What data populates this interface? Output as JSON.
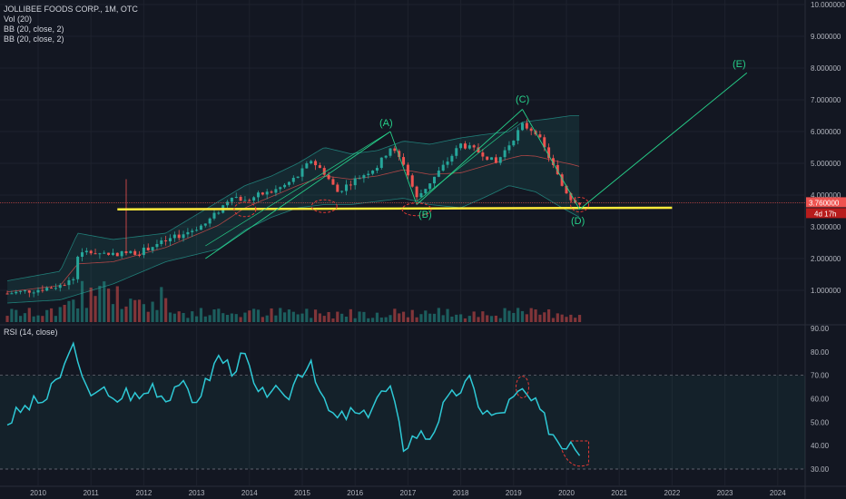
{
  "header": {
    "symbol_line": "JOLLIBEE FOODS CORP., 1M, OTC",
    "indicators": [
      "Vol (20)",
      "BB (20, close, 2)",
      "BB (20, close, 2)"
    ]
  },
  "rsi_legend": "RSI (14, close)",
  "colors": {
    "background": "#131722",
    "up": "#26a69a",
    "down": "#ef5350",
    "bb_fill": "#26a69a",
    "support_line": "#ffeb3b",
    "wave_line": "#26d08a",
    "rsi_line": "#2ec9d6",
    "markup_red": "#e53935"
  },
  "price_axis_labels": [
    "10.000000",
    "9.000000",
    "8.000000",
    "7.000000",
    "6.000000",
    "5.000000",
    "4.000000",
    "3.000000",
    "2.000000",
    "1.000000"
  ],
  "current_price_label": "3.760000",
  "countdown_label": "4d 17h",
  "rsi_axis_labels": [
    "90.00",
    "80.00",
    "70.00",
    "60.00",
    "50.00",
    "40.00",
    "30.00"
  ],
  "time_axis_labels": [
    "2010",
    "2011",
    "2012",
    "2013",
    "2014",
    "2015",
    "2016",
    "2017",
    "2018",
    "2019",
    "2020",
    "2021",
    "2022",
    "2023",
    "2024"
  ],
  "annotations": {
    "A": "(A)",
    "B": "(B)",
    "C": "(C)",
    "D": "(D)",
    "E": "(E)"
  },
  "chart_data": [
    {
      "type": "candlestick",
      "title": "JOLLIBEE FOODS CORP., 1M, OTC",
      "x_range": [
        "2009-06",
        "2024-12"
      ],
      "ylim": [
        0,
        10
      ],
      "support_level": 3.6,
      "current_price": 3.76,
      "close_path": [
        [
          "2009-06",
          0.9
        ],
        [
          "2009-12",
          1.0
        ],
        [
          "2010-06",
          1.15
        ],
        [
          "2010-09",
          1.35
        ],
        [
          "2010-10",
          2.1
        ],
        [
          "2010-12",
          2.2
        ],
        [
          "2011-06",
          2.15
        ],
        [
          "2011-12",
          2.2
        ],
        [
          "2012-03",
          2.4
        ],
        [
          "2012-06",
          2.55
        ],
        [
          "2012-12",
          2.9
        ],
        [
          "2013-03",
          3.1
        ],
        [
          "2013-06",
          3.5
        ],
        [
          "2013-09",
          4.0
        ],
        [
          "2013-12",
          3.8
        ],
        [
          "2014-03",
          4.0
        ],
        [
          "2014-06",
          4.1
        ],
        [
          "2014-09",
          4.3
        ],
        [
          "2014-12",
          4.6
        ],
        [
          "2015-03",
          5.1
        ],
        [
          "2015-06",
          4.7
        ],
        [
          "2015-09",
          4.1
        ],
        [
          "2015-12",
          4.4
        ],
        [
          "2016-06",
          4.9
        ],
        [
          "2016-09",
          5.5
        ],
        [
          "2016-12",
          5.0
        ],
        [
          "2017-03",
          3.9
        ],
        [
          "2017-06",
          4.4
        ],
        [
          "2017-09",
          4.9
        ],
        [
          "2018-01",
          5.6
        ],
        [
          "2018-06",
          5.3
        ],
        [
          "2018-09",
          5.0
        ],
        [
          "2018-12",
          5.6
        ],
        [
          "2019-03",
          6.2
        ],
        [
          "2019-06",
          6.0
        ],
        [
          "2019-09",
          5.2
        ],
        [
          "2019-12",
          4.3
        ],
        [
          "2020-02",
          3.9
        ],
        [
          "2020-04",
          3.76
        ]
      ],
      "bb_upper": [
        [
          "2009-06",
          1.3
        ],
        [
          "2010-06",
          1.6
        ],
        [
          "2010-10",
          2.8
        ],
        [
          "2011-06",
          2.6
        ],
        [
          "2012-06",
          2.8
        ],
        [
          "2013-06",
          3.8
        ],
        [
          "2013-12",
          4.3
        ],
        [
          "2014-06",
          4.6
        ],
        [
          "2014-12",
          5.0
        ],
        [
          "2015-06",
          5.5
        ],
        [
          "2015-12",
          5.3
        ],
        [
          "2016-06",
          5.4
        ],
        [
          "2016-12",
          5.7
        ],
        [
          "2017-06",
          5.6
        ],
        [
          "2018-01",
          5.8
        ],
        [
          "2018-06",
          5.9
        ],
        [
          "2018-12",
          6.0
        ],
        [
          "2019-03",
          6.3
        ],
        [
          "2019-09",
          6.4
        ],
        [
          "2020-02",
          6.5
        ]
      ],
      "bb_lower": [
        [
          "2009-06",
          0.6
        ],
        [
          "2010-06",
          0.7
        ],
        [
          "2011-06",
          1.2
        ],
        [
          "2012-06",
          1.9
        ],
        [
          "2013-06",
          2.3
        ],
        [
          "2013-12",
          2.9
        ],
        [
          "2014-06",
          3.3
        ],
        [
          "2014-12",
          3.6
        ],
        [
          "2015-06",
          3.7
        ],
        [
          "2015-12",
          3.7
        ],
        [
          "2016-06",
          3.8
        ],
        [
          "2016-12",
          3.9
        ],
        [
          "2017-06",
          3.7
        ],
        [
          "2018-01",
          3.6
        ],
        [
          "2018-06",
          3.9
        ],
        [
          "2018-12",
          4.3
        ],
        [
          "2019-06",
          4.1
        ],
        [
          "2019-12",
          3.6
        ],
        [
          "2020-04",
          3.3
        ]
      ],
      "wave_points": [
        [
          "2013-03",
          2.0
        ],
        [
          "2016-09",
          6.0
        ],
        [
          "2017-03",
          3.7
        ],
        [
          "2019-03",
          6.7
        ],
        [
          "2020-04",
          3.55
        ],
        [
          "2023-06",
          7.85
        ]
      ]
    },
    {
      "type": "line",
      "title": "RSI (14, close)",
      "ylim": [
        25,
        92
      ],
      "levels": [
        70,
        30
      ],
      "series": [
        {
          "values": [
            [
              "2009-06",
              50
            ],
            [
              "2009-09",
              55
            ],
            [
              "2009-12",
              58
            ],
            [
              "2010-03",
              60
            ],
            [
              "2010-06",
              70
            ],
            [
              "2010-08",
              78
            ],
            [
              "2010-09",
              87
            ],
            [
              "2010-10",
              73
            ],
            [
              "2010-12",
              63
            ],
            [
              "2011-03",
              65
            ],
            [
              "2011-06",
              58
            ],
            [
              "2011-09",
              63
            ],
            [
              "2011-12",
              60
            ],
            [
              "2012-03",
              66
            ],
            [
              "2012-06",
              60
            ],
            [
              "2012-09",
              68
            ],
            [
              "2012-12",
              58
            ],
            [
              "2013-03",
              66
            ],
            [
              "2013-06",
              78
            ],
            [
              "2013-09",
              73
            ],
            [
              "2013-12",
              78
            ],
            [
              "2014-03",
              60
            ],
            [
              "2014-06",
              65
            ],
            [
              "2014-09",
              58
            ],
            [
              "2014-12",
              70
            ],
            [
              "2015-03",
              77
            ],
            [
              "2015-06",
              57
            ],
            [
              "2015-09",
              51
            ],
            [
              "2015-12",
              54
            ],
            [
              "2016-03",
              52
            ],
            [
              "2016-06",
              61
            ],
            [
              "2016-09",
              64
            ],
            [
              "2016-12",
              40
            ],
            [
              "2017-03",
              45
            ],
            [
              "2017-06",
              44
            ],
            [
              "2017-09",
              56
            ],
            [
              "2017-12",
              63
            ],
            [
              "2018-03",
              67
            ],
            [
              "2018-06",
              55
            ],
            [
              "2018-09",
              52
            ],
            [
              "2018-12",
              58
            ],
            [
              "2019-03",
              63
            ],
            [
              "2019-06",
              57
            ],
            [
              "2019-09",
              48
            ],
            [
              "2019-12",
              40
            ],
            [
              "2020-02",
              43
            ],
            [
              "2020-04",
              38
            ]
          ]
        }
      ]
    }
  ]
}
